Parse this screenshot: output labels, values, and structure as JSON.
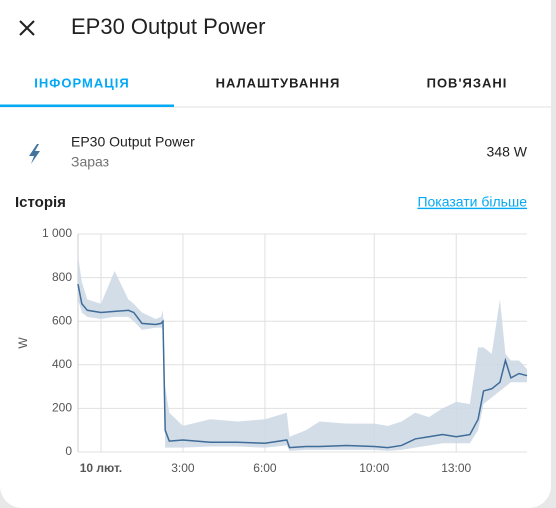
{
  "header": {
    "title": "EP30 Output Power"
  },
  "tabs": [
    "ІНФОРМАЦІЯ",
    "НАЛАШТУВАННЯ",
    "ПОВ'ЯЗАНІ"
  ],
  "entity": {
    "name": "EP30 Output Power",
    "secondary": "Зараз",
    "state": "348 W"
  },
  "history": {
    "title": "Історія",
    "link": "Показати більше"
  },
  "chart_data": {
    "type": "line",
    "ylabel": "W",
    "x": [
      -0.84,
      -0.7,
      -0.5,
      0,
      0.5,
      1,
      1.2,
      1.5,
      2,
      2.2,
      2.27,
      2.35,
      2.5,
      3,
      4,
      5,
      6,
      6.8,
      6.9,
      7.5,
      8,
      9,
      10,
      10.5,
      11,
      11.5,
      12,
      12.5,
      13,
      13.5,
      13.8,
      14,
      14.3,
      14.6,
      14.8,
      15,
      15.3,
      15.59
    ],
    "xlim": [
      -0.84,
      15.59
    ],
    "xticks": [
      {
        "value": 0,
        "label": "10 лют."
      },
      {
        "value": 3,
        "label": "3:00"
      },
      {
        "value": 6,
        "label": "6:00"
      },
      {
        "value": 10,
        "label": "10:00"
      },
      {
        "value": 13,
        "label": "13:00"
      }
    ],
    "ylim": [
      0,
      1000
    ],
    "yticks": [
      0,
      200,
      400,
      600,
      800,
      {
        "value": 1000,
        "label": "1 000"
      }
    ],
    "grid": true,
    "series": [
      {
        "color": "#3f6c98",
        "values": [
          770,
          680,
          650,
          640,
          645,
          650,
          640,
          590,
          585,
          590,
          600,
          100,
          50,
          55,
          45,
          45,
          40,
          55,
          20,
          25,
          25,
          30,
          25,
          20,
          30,
          60,
          70,
          80,
          70,
          80,
          150,
          280,
          290,
          320,
          420,
          340,
          360,
          350
        ]
      },
      {
        "color": "#cbd7e4",
        "values": [
          900,
          780,
          700,
          680,
          830,
          700,
          680,
          640,
          610,
          620,
          650,
          300,
          180,
          120,
          150,
          140,
          150,
          180,
          70,
          100,
          140,
          130,
          130,
          120,
          140,
          180,
          160,
          200,
          230,
          220,
          480,
          480,
          450,
          700,
          450,
          420,
          420,
          380
        ]
      },
      {
        "color": "#cbd7e4",
        "values": [
          700,
          640,
          620,
          610,
          620,
          620,
          600,
          560,
          570,
          570,
          560,
          20,
          20,
          20,
          25,
          25,
          20,
          30,
          5,
          10,
          10,
          10,
          10,
          5,
          10,
          20,
          30,
          40,
          40,
          40,
          100,
          220,
          250,
          280,
          300,
          320,
          320,
          320
        ]
      }
    ]
  }
}
